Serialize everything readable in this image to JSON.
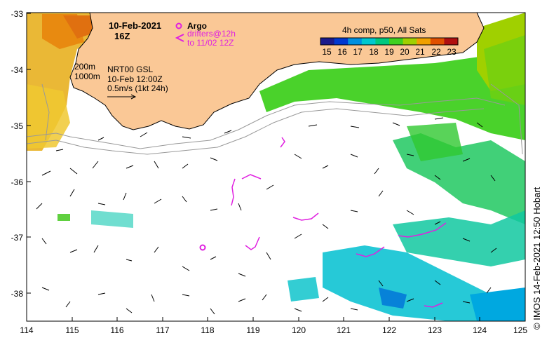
{
  "header": {
    "date": "10-Feb-2021",
    "hour": "16Z"
  },
  "legend": {
    "argo_label": "Argo",
    "drifters_label": "drifters@12h",
    "drifters_label2": "to 11/02 12Z",
    "argo_color": "#e020e0"
  },
  "isobaths": {
    "label1": "200m",
    "label2": "1000m"
  },
  "currents": {
    "source": "NRT00 GSL",
    "time": "10-Feb 12:00Z",
    "scale": "0.5m/s (1kt 24h)"
  },
  "colorbar": {
    "title": "4h comp, p50, All Sats",
    "ticks": [
      "15",
      "16",
      "17",
      "18",
      "19",
      "20",
      "21",
      "22",
      "23"
    ],
    "colors": [
      "#1a1a8c",
      "#0038d0",
      "#0090e0",
      "#00c8d0",
      "#00c880",
      "#40d020",
      "#a0d000",
      "#f0a000",
      "#e05000",
      "#b01010"
    ]
  },
  "axes": {
    "x_ticks": [
      "114",
      "115",
      "116",
      "117",
      "118",
      "119",
      "120",
      "121",
      "122",
      "123",
      "124",
      "125"
    ],
    "y_ticks": [
      "-33",
      "-34",
      "-35",
      "-36",
      "-37",
      "-38"
    ]
  },
  "credit": {
    "text": "IMOS 14-Feb-2021 12:50 Hobart",
    "symbol": "©"
  }
}
